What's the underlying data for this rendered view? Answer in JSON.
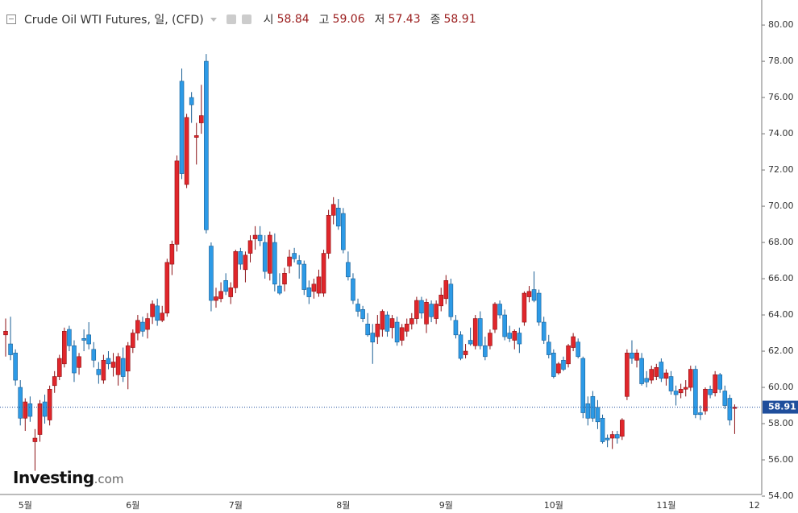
{
  "chart_data": {
    "type": "candlestick",
    "title": "Crude Oil WTI Futures, 일, (CFD)",
    "ohlc_labels": [
      "시",
      "고",
      "저",
      "종"
    ],
    "watermark": [
      "Investing",
      ".com"
    ],
    "up_color": "#e0262b",
    "up_border": "#8c1216",
    "down_color": "#2d9ae6",
    "down_border": "#1a5f95",
    "last_price_color": "#1f4e9c",
    "ylim": [
      54.09,
      81.16
    ],
    "yticks": [
      {
        "value": 54,
        "label": "54.00"
      },
      {
        "value": 56,
        "label": "56.00"
      },
      {
        "value": 58,
        "label": "58.00"
      },
      {
        "value": 60,
        "label": "60.00"
      },
      {
        "value": 62,
        "label": "62.00"
      },
      {
        "value": 64,
        "label": "64.00"
      },
      {
        "value": 66,
        "label": "66.00"
      },
      {
        "value": 68,
        "label": "68.00"
      },
      {
        "value": 70,
        "label": "70.00"
      },
      {
        "value": 72,
        "label": "72.00"
      },
      {
        "value": 74,
        "label": "74.00"
      },
      {
        "value": 76,
        "label": "76.00"
      },
      {
        "value": 78,
        "label": "78.00"
      },
      {
        "value": 80,
        "label": "80.00"
      }
    ],
    "grid": false,
    "categories": [
      null,
      null,
      null,
      null,
      "5월",
      null,
      null,
      null,
      null,
      null,
      null,
      null,
      null,
      null,
      null,
      null,
      null,
      null,
      null,
      null,
      null,
      null,
      null,
      null,
      null,
      null,
      "6월",
      null,
      null,
      null,
      null,
      null,
      null,
      null,
      null,
      null,
      null,
      null,
      null,
      null,
      null,
      null,
      null,
      null,
      null,
      null,
      null,
      "7월",
      null,
      null,
      null,
      null,
      null,
      null,
      null,
      null,
      null,
      null,
      null,
      null,
      null,
      null,
      null,
      null,
      null,
      null,
      null,
      null,
      null,
      "8월",
      null,
      null,
      null,
      null,
      null,
      null,
      null,
      null,
      null,
      null,
      null,
      null,
      null,
      null,
      null,
      null,
      null,
      null,
      null,
      null,
      "9월",
      null,
      null,
      null,
      null,
      null,
      null,
      null,
      null,
      null,
      null,
      null,
      null,
      null,
      null,
      null,
      null,
      null,
      null,
      null,
      null,
      null,
      "10월",
      null,
      null,
      null,
      null,
      null,
      null,
      null,
      null,
      null,
      null,
      null,
      null,
      null,
      null,
      null,
      null,
      null,
      null,
      null,
      null,
      null,
      null,
      "11월",
      null,
      null,
      null,
      null,
      null,
      null,
      null,
      null,
      null,
      null,
      null,
      null,
      null,
      null,
      null,
      null,
      null,
      "12"
    ],
    "candles": [
      [
        62.9,
        63.8,
        61.7,
        63.1
      ],
      [
        62.4,
        63.9,
        61.5,
        61.8
      ],
      [
        61.9,
        62.1,
        60.1,
        60.4
      ],
      [
        60.0,
        60.4,
        57.9,
        58.3
      ],
      [
        58.3,
        59.4,
        57.6,
        59.2
      ],
      [
        59.1,
        59.5,
        58.1,
        58.4
      ],
      [
        57.0,
        57.7,
        55.4,
        57.2
      ],
      [
        57.4,
        59.3,
        57.0,
        59.1
      ],
      [
        59.2,
        59.6,
        58.0,
        58.4
      ],
      [
        58.2,
        60.1,
        57.9,
        59.9
      ],
      [
        60.1,
        60.9,
        59.7,
        60.6
      ],
      [
        60.6,
        61.8,
        60.4,
        61.6
      ],
      [
        61.3,
        63.3,
        61.1,
        63.1
      ],
      [
        63.2,
        63.4,
        62.0,
        62.3
      ],
      [
        62.3,
        62.6,
        60.3,
        60.8
      ],
      [
        61.1,
        61.9,
        60.7,
        61.7
      ],
      [
        62.7,
        63.2,
        62.0,
        62.6
      ],
      [
        62.9,
        63.6,
        62.1,
        62.4
      ],
      [
        62.1,
        62.5,
        61.1,
        61.5
      ],
      [
        61.0,
        61.4,
        60.2,
        60.7
      ],
      [
        60.4,
        61.8,
        60.2,
        61.5
      ],
      [
        61.6,
        62.0,
        61.0,
        61.3
      ],
      [
        61.1,
        61.9,
        60.6,
        61.4
      ],
      [
        60.7,
        61.9,
        60.1,
        61.7
      ],
      [
        61.6,
        62.2,
        60.3,
        60.6
      ],
      [
        60.9,
        62.5,
        59.9,
        62.3
      ],
      [
        62.2,
        63.2,
        61.9,
        63.0
      ],
      [
        63.0,
        64.0,
        62.6,
        63.7
      ],
      [
        63.6,
        63.9,
        62.8,
        63.1
      ],
      [
        63.2,
        64.1,
        62.7,
        63.8
      ],
      [
        63.9,
        64.8,
        63.5,
        64.6
      ],
      [
        64.5,
        64.9,
        63.4,
        63.7
      ],
      [
        63.7,
        64.5,
        63.6,
        64.1
      ],
      [
        64.1,
        67.1,
        63.9,
        66.9
      ],
      [
        66.8,
        68.1,
        66.2,
        67.9
      ],
      [
        67.9,
        72.8,
        67.5,
        72.5
      ],
      [
        76.9,
        77.6,
        71.5,
        71.8
      ],
      [
        71.2,
        75.1,
        71.0,
        74.9
      ],
      [
        76.0,
        76.3,
        74.6,
        75.6
      ],
      [
        73.8,
        74.6,
        72.3,
        73.9
      ],
      [
        74.6,
        76.7,
        74.0,
        75.0
      ],
      [
        78.0,
        78.4,
        68.5,
        68.7
      ],
      [
        67.8,
        68.0,
        64.2,
        64.8
      ],
      [
        64.8,
        65.5,
        64.4,
        65.0
      ],
      [
        64.9,
        65.8,
        64.7,
        65.3
      ],
      [
        65.9,
        66.3,
        65.1,
        65.3
      ],
      [
        65.0,
        65.8,
        64.6,
        65.5
      ],
      [
        65.5,
        67.6,
        65.2,
        67.5
      ],
      [
        67.5,
        67.7,
        66.5,
        66.8
      ],
      [
        66.5,
        67.5,
        65.8,
        67.3
      ],
      [
        67.4,
        68.4,
        66.9,
        68.1
      ],
      [
        68.2,
        68.9,
        67.6,
        68.4
      ],
      [
        68.4,
        68.9,
        67.8,
        68.1
      ],
      [
        68.0,
        68.4,
        66.0,
        66.4
      ],
      [
        66.3,
        68.6,
        65.9,
        68.4
      ],
      [
        68.0,
        68.5,
        65.3,
        65.7
      ],
      [
        65.6,
        66.3,
        65.1,
        65.2
      ],
      [
        65.7,
        66.6,
        65.3,
        66.3
      ],
      [
        66.7,
        67.6,
        66.3,
        67.2
      ],
      [
        67.4,
        67.7,
        66.9,
        67.1
      ],
      [
        67.0,
        67.3,
        66.0,
        66.8
      ],
      [
        66.8,
        67.0,
        65.1,
        65.4
      ],
      [
        65.5,
        65.9,
        64.6,
        65.0
      ],
      [
        65.3,
        66.0,
        64.9,
        65.7
      ],
      [
        65.2,
        66.5,
        65.0,
        66.1
      ],
      [
        65.2,
        67.6,
        65.0,
        67.4
      ],
      [
        67.4,
        69.8,
        67.1,
        69.5
      ],
      [
        69.5,
        70.5,
        69.0,
        70.1
      ],
      [
        69.9,
        70.4,
        68.7,
        68.9
      ],
      [
        69.6,
        69.9,
        67.4,
        67.6
      ],
      [
        66.9,
        67.5,
        65.9,
        66.1
      ],
      [
        66.0,
        66.3,
        64.6,
        64.8
      ],
      [
        64.6,
        64.9,
        63.9,
        64.2
      ],
      [
        64.3,
        64.5,
        63.6,
        63.8
      ],
      [
        63.5,
        64.1,
        62.8,
        62.9
      ],
      [
        63.0,
        63.5,
        61.3,
        62.5
      ],
      [
        62.8,
        64.0,
        62.4,
        63.5
      ],
      [
        63.2,
        64.3,
        62.8,
        64.2
      ],
      [
        64.0,
        64.2,
        62.8,
        63.1
      ],
      [
        63.3,
        64.0,
        62.7,
        63.8
      ],
      [
        63.6,
        63.9,
        62.3,
        62.5
      ],
      [
        62.6,
        63.5,
        62.3,
        63.3
      ],
      [
        63.1,
        63.8,
        62.8,
        63.5
      ],
      [
        63.5,
        64.1,
        63.2,
        63.8
      ],
      [
        63.8,
        65.0,
        63.5,
        64.8
      ],
      [
        64.8,
        65.0,
        63.8,
        64.1
      ],
      [
        63.5,
        64.9,
        63.0,
        64.7
      ],
      [
        64.6,
        64.8,
        63.6,
        63.9
      ],
      [
        63.8,
        64.8,
        63.5,
        64.6
      ],
      [
        64.5,
        65.5,
        64.2,
        65.1
      ],
      [
        64.9,
        66.2,
        64.6,
        65.9
      ],
      [
        65.7,
        66.0,
        63.7,
        63.9
      ],
      [
        63.7,
        64.0,
        62.7,
        62.9
      ],
      [
        62.9,
        63.1,
        61.5,
        61.6
      ],
      [
        61.8,
        62.4,
        61.6,
        62.0
      ],
      [
        62.6,
        63.3,
        62.3,
        62.4
      ],
      [
        62.3,
        64.0,
        62.1,
        63.8
      ],
      [
        63.8,
        64.2,
        62.1,
        62.3
      ],
      [
        62.3,
        62.8,
        61.5,
        61.7
      ],
      [
        62.3,
        63.2,
        62.1,
        63.0
      ],
      [
        63.2,
        64.7,
        63.0,
        64.6
      ],
      [
        64.6,
        64.8,
        63.8,
        64.0
      ],
      [
        64.0,
        64.3,
        62.6,
        62.8
      ],
      [
        63.0,
        63.4,
        62.5,
        62.7
      ],
      [
        62.6,
        63.2,
        62.1,
        63.1
      ],
      [
        63.0,
        63.3,
        61.9,
        62.4
      ],
      [
        63.6,
        65.3,
        63.4,
        65.2
      ],
      [
        65.0,
        65.6,
        64.7,
        65.3
      ],
      [
        65.4,
        66.4,
        64.7,
        64.8
      ],
      [
        65.2,
        65.4,
        63.4,
        63.6
      ],
      [
        63.6,
        63.9,
        62.4,
        62.6
      ],
      [
        62.5,
        62.9,
        61.6,
        61.8
      ],
      [
        61.9,
        62.1,
        60.5,
        60.6
      ],
      [
        60.8,
        61.4,
        60.7,
        61.3
      ],
      [
        61.5,
        61.7,
        60.9,
        61.0
      ],
      [
        61.3,
        62.4,
        61.1,
        62.3
      ],
      [
        62.2,
        63.0,
        62.0,
        62.8
      ],
      [
        62.5,
        62.7,
        61.6,
        61.7
      ],
      [
        61.6,
        61.7,
        58.3,
        58.6
      ],
      [
        59.1,
        59.5,
        57.9,
        58.3
      ],
      [
        59.5,
        59.8,
        58.1,
        58.3
      ],
      [
        58.9,
        59.3,
        57.7,
        58.1
      ],
      [
        58.3,
        58.5,
        56.9,
        57.0
      ],
      [
        57.2,
        57.4,
        56.7,
        57.1
      ],
      [
        57.2,
        57.6,
        56.6,
        57.4
      ],
      [
        57.4,
        57.6,
        56.9,
        57.2
      ],
      [
        57.3,
        58.3,
        57.1,
        58.2
      ],
      [
        59.5,
        62.1,
        59.3,
        61.9
      ],
      [
        61.9,
        62.6,
        61.3,
        61.6
      ],
      [
        61.5,
        62.1,
        61.1,
        61.9
      ],
      [
        61.6,
        61.9,
        60.1,
        60.2
      ],
      [
        60.5,
        60.9,
        60.0,
        60.3
      ],
      [
        60.4,
        61.2,
        60.2,
        61.0
      ],
      [
        60.6,
        61.3,
        60.4,
        61.1
      ],
      [
        61.4,
        61.6,
        60.3,
        60.5
      ],
      [
        60.5,
        61.0,
        60.1,
        60.8
      ],
      [
        60.6,
        60.9,
        59.6,
        59.8
      ],
      [
        59.8,
        60.1,
        59.0,
        59.6
      ],
      [
        59.7,
        60.2,
        59.4,
        59.9
      ],
      [
        59.9,
        60.4,
        59.5,
        60.0
      ],
      [
        60.0,
        61.2,
        59.8,
        61.0
      ],
      [
        61.0,
        61.2,
        58.3,
        58.5
      ],
      [
        58.6,
        59.0,
        58.2,
        58.5
      ],
      [
        58.7,
        60.0,
        58.5,
        59.9
      ],
      [
        59.9,
        60.1,
        59.4,
        59.6
      ],
      [
        59.7,
        60.9,
        59.5,
        60.7
      ],
      [
        60.7,
        60.8,
        59.7,
        59.9
      ],
      [
        59.8,
        60.1,
        58.8,
        59.0
      ],
      [
        59.4,
        59.6,
        57.9,
        58.2
      ],
      [
        58.84,
        59.06,
        57.43,
        58.91
      ],
      null,
      null,
      null,
      null
    ]
  }
}
